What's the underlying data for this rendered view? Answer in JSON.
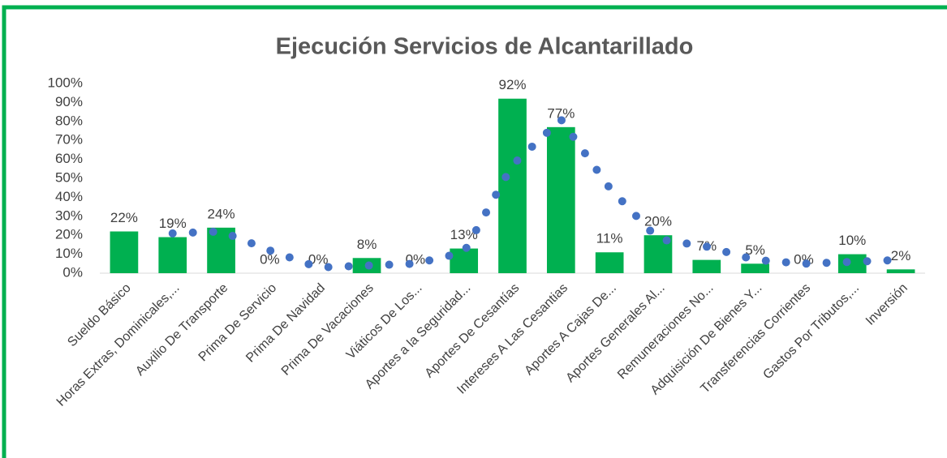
{
  "chart_data": {
    "type": "bar",
    "title": "Ejecución Servicios de Alcantarillado",
    "categories": [
      "Sueldo Básico",
      "Horas Extras, Dominicales,...",
      "Auxilio De Transporte",
      "Prima De Servicio",
      "Prima De Navidad",
      "Prima De Vacaciones",
      "Viáticos De Los...",
      "Aportes a la Seguridad...",
      "Aportes De Cesantías",
      "Intereses A Las Cesantias",
      "Aportes A Cajas De...",
      "Aportes Generales Al...",
      "Remuneraciones No...",
      "Adquisición De Bienes Y...",
      "Transferencias Corrientes",
      "Gastos Por Tributos,...",
      "Inversión"
    ],
    "values": [
      22,
      19,
      24,
      0,
      0,
      8,
      0,
      13,
      92,
      77,
      11,
      20,
      7,
      5,
      0,
      10,
      2
    ],
    "value_labels": [
      "22%",
      "19%",
      "24%",
      "0%",
      "0%",
      "8%",
      "0%",
      "13%",
      "92%",
      "77%",
      "11%",
      "20%",
      "7%",
      "5%",
      "0%",
      "10%",
      "2%"
    ],
    "color": "#00b050",
    "trendline": {
      "color": "#4472c4",
      "values": [
        null,
        21,
        22,
        12,
        3,
        4,
        5,
        11,
        57,
        81,
        45,
        18,
        14,
        7,
        5,
        6,
        7
      ]
    },
    "ylim": [
      0,
      100
    ],
    "yticks": [
      {
        "value": 0,
        "label": "0%"
      },
      {
        "value": 10,
        "label": "10%"
      },
      {
        "value": 20,
        "label": "20%"
      },
      {
        "value": 30,
        "label": "30%"
      },
      {
        "value": 40,
        "label": "40%"
      },
      {
        "value": 50,
        "label": "50%"
      },
      {
        "value": 60,
        "label": "60%"
      },
      {
        "value": 70,
        "label": "70%"
      },
      {
        "value": 80,
        "label": "80%"
      },
      {
        "value": 90,
        "label": "90%"
      },
      {
        "value": 100,
        "label": "100%"
      }
    ],
    "grid": false
  }
}
